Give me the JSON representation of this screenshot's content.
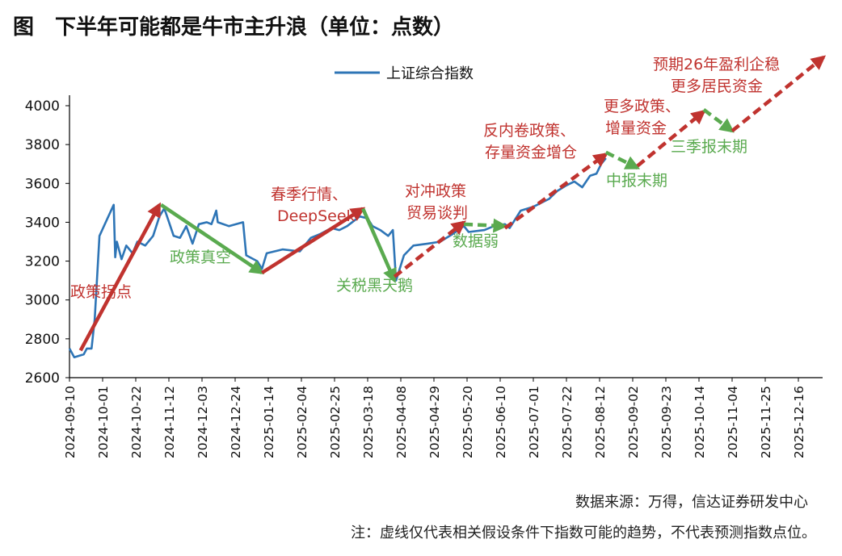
{
  "title": "图　下半年可能都是牛市主升浪（单位：点数）",
  "source": "数据来源：万得，信达证券研发中心",
  "note": "注：虚线仅代表相关假设条件下指数可能的趋势，不代表预测指数点位。",
  "colors": {
    "series": "#2e75b6",
    "up": "#c0332f",
    "down": "#5aaa4f",
    "axis": "#000000"
  },
  "chart_data": {
    "type": "line",
    "title": "下半年可能都是牛市主升浪（单位：点数）",
    "xlabel": "",
    "ylabel": "",
    "ylim": [
      2600,
      4000
    ],
    "yticks": [
      2600,
      2800,
      3000,
      3200,
      3400,
      3600,
      3800,
      4000
    ],
    "xstart": "2024-09-10",
    "xlim_days": [
      0,
      455
    ],
    "xticks": [
      "2024-09-10",
      "2024-10-01",
      "2024-10-22",
      "2024-11-12",
      "2024-12-03",
      "2024-12-24",
      "2025-01-14",
      "2025-02-04",
      "2025-02-25",
      "2025-03-18",
      "2025-04-08",
      "2025-04-29",
      "2025-05-20",
      "2025-06-10",
      "2025-07-01",
      "2025-07-22",
      "2025-08-12",
      "2025-09-02",
      "2025-09-23",
      "2025-10-14",
      "2025-11-04",
      "2025-11-25",
      "2025-12-16"
    ],
    "legend": {
      "position": "top-center",
      "entries": [
        "上证综合指数"
      ]
    },
    "grid": false,
    "series": [
      {
        "name": "上证综合指数",
        "x_days": [
          0,
          3,
          9,
          11,
          14,
          16,
          19,
          28,
          29,
          30,
          33,
          36,
          40,
          43,
          48,
          53,
          57,
          60,
          61,
          66,
          70,
          74,
          78,
          82,
          87,
          90,
          93,
          94,
          101,
          110,
          112,
          119,
          122,
          125,
          130,
          135,
          146,
          149,
          153,
          159,
          166,
          171,
          176,
          184,
          189,
          192,
          197,
          202,
          205,
          207,
          212,
          218,
          227,
          235,
          243,
          250,
          253,
          263,
          269,
          276,
          279,
          286,
          294,
          304,
          309,
          315,
          320,
          325,
          330,
          334,
          337,
          340
        ],
        "values": [
          2750,
          2705,
          2720,
          2750,
          2750,
          2900,
          3330,
          3490,
          3220,
          3300,
          3210,
          3280,
          3240,
          3300,
          3280,
          3330,
          3430,
          3470,
          3450,
          3330,
          3320,
          3380,
          3290,
          3390,
          3400,
          3390,
          3460,
          3400,
          3380,
          3400,
          3230,
          3200,
          3160,
          3240,
          3250,
          3260,
          3250,
          3280,
          3320,
          3340,
          3370,
          3360,
          3380,
          3430,
          3420,
          3380,
          3360,
          3330,
          3360,
          3100,
          3230,
          3280,
          3290,
          3300,
          3340,
          3380,
          3350,
          3360,
          3380,
          3390,
          3370,
          3460,
          3480,
          3520,
          3560,
          3590,
          3610,
          3580,
          3640,
          3650,
          3700,
          3730
        ]
      }
    ],
    "annotations": [
      {
        "lines": [
          "政策拐点"
        ],
        "trend": "up",
        "dashed": false,
        "from": [
          7,
          2740
        ],
        "to": [
          57,
          3490
        ]
      },
      {
        "lines": [
          "政策真空"
        ],
        "trend": "down",
        "dashed": false,
        "from": [
          58,
          3490
        ],
        "to": [
          122,
          3140
        ]
      },
      {
        "lines": [
          "春季行情、",
          "DeepSeek"
        ],
        "trend": "up",
        "dashed": false,
        "from": [
          122,
          3140
        ],
        "to": [
          186,
          3470
        ]
      },
      {
        "lines": [
          "关税黑天鹅"
        ],
        "trend": "down",
        "dashed": false,
        "from": [
          186,
          3470
        ],
        "to": [
          206,
          3100
        ]
      },
      {
        "lines": [
          "对冲政策",
          "贸易谈判"
        ],
        "trend": "up",
        "dashed": true,
        "from": [
          206,
          3120
        ],
        "to": [
          250,
          3400
        ]
      },
      {
        "lines": [
          "数据弱"
        ],
        "trend": "down",
        "dashed": true,
        "from": [
          250,
          3390
        ],
        "to": [
          276,
          3380
        ]
      },
      {
        "lines": [
          "反内卷政策、",
          "存量资金增仓"
        ],
        "trend": "up",
        "dashed": true,
        "from": [
          276,
          3370
        ],
        "to": [
          340,
          3750
        ]
      },
      {
        "lines": [
          "中报末期"
        ],
        "trend": "down",
        "dashed": true,
        "from": [
          340,
          3760
        ],
        "to": [
          360,
          3680
        ]
      },
      {
        "lines": [
          "更多政策、",
          "增量资金"
        ],
        "trend": "up",
        "dashed": true,
        "from": [
          360,
          3690
        ],
        "to": [
          402,
          3970
        ]
      },
      {
        "lines": [
          "三季报末期"
        ],
        "trend": "down",
        "dashed": true,
        "from": [
          402,
          3980
        ],
        "to": [
          420,
          3870
        ]
      },
      {
        "lines": [
          "预期26年盈利企稳",
          "更多居民资金"
        ],
        "trend": "up",
        "dashed": true,
        "from": [
          420,
          3870
        ],
        "to": [
          478,
          4250
        ]
      }
    ]
  }
}
